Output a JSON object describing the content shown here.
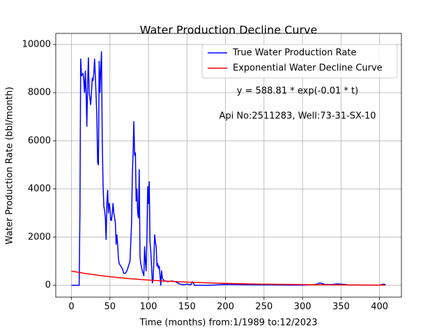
{
  "chart_data": {
    "type": "line",
    "title": "Water Production Decline Curve",
    "xlabel": "Time (months) from:1/1989 to:12/2023",
    "ylabel": "Water Production Rate (bbl/month)",
    "annotations": [
      "y = 588.81 * exp(-0.01 * t)",
      "Api No:2511283, Well:73-31-SX-10"
    ],
    "xlim": [
      -20.4,
      428.4
    ],
    "ylim": [
      -490,
      10460
    ],
    "xticks": [
      0,
      50,
      100,
      150,
      200,
      250,
      300,
      350,
      400
    ],
    "yticks": [
      0,
      2000,
      4000,
      6000,
      8000,
      10000
    ],
    "grid": true,
    "legend": "upper right",
    "series": [
      {
        "name": "True Water Production Rate",
        "color": "#0000ff",
        "x": [
          0,
          10,
          11,
          12,
          13,
          15,
          16,
          17,
          18,
          19,
          20,
          21,
          22,
          23,
          25,
          27,
          28,
          29,
          30,
          31,
          33,
          34,
          35,
          36,
          37,
          38,
          39,
          40,
          41,
          42,
          43,
          44,
          45,
          46,
          47,
          48,
          49,
          50,
          51,
          52,
          53,
          54,
          55,
          57,
          58,
          59,
          60,
          61,
          62,
          64,
          66,
          68,
          70,
          72,
          74,
          76,
          78,
          79,
          80,
          81,
          82,
          83,
          84,
          85,
          86,
          87,
          88,
          89,
          90,
          92,
          94,
          95,
          96,
          97,
          98,
          99,
          100,
          101,
          102,
          103,
          104,
          105,
          106,
          107,
          108,
          109,
          110,
          111,
          112,
          113,
          114,
          115,
          116,
          117,
          118,
          120,
          125,
          130,
          135,
          140,
          145,
          150,
          155,
          157,
          160,
          180,
          200,
          220,
          240,
          260,
          280,
          300,
          315,
          320,
          322,
          325,
          330,
          340,
          345,
          350,
          360,
          380,
          400,
          405,
          408
        ],
        "values": [
          0,
          0,
          3000,
          9400,
          8700,
          8800,
          8500,
          8000,
          8900,
          8000,
          6600,
          8400,
          9450,
          8000,
          7500,
          8600,
          8500,
          8800,
          9400,
          8700,
          7000,
          5100,
          5000,
          9300,
          8000,
          9000,
          9700,
          6000,
          4200,
          3300,
          3100,
          2800,
          1900,
          3400,
          3950,
          3000,
          3400,
          3200,
          2700,
          2700,
          3000,
          3400,
          3000,
          2600,
          1700,
          2100,
          1700,
          1100,
          900,
          800,
          700,
          500,
          500,
          600,
          800,
          1000,
          2500,
          4500,
          5500,
          6800,
          5400,
          5500,
          3500,
          4000,
          3000,
          2800,
          4800,
          1200,
          900,
          600,
          400,
          1600,
          1000,
          600,
          2000,
          4100,
          3400,
          4300,
          1800,
          1400,
          800,
          100,
          200,
          1000,
          2100,
          1800,
          1600,
          800,
          900,
          700,
          800,
          400,
          0,
          600,
          300,
          200,
          150,
          180,
          150,
          60,
          20,
          50,
          20,
          150,
          0,
          0,
          40,
          30,
          20,
          20,
          10,
          10,
          30,
          60,
          100,
          80,
          30,
          40,
          60,
          50,
          20,
          10,
          10,
          50,
          30
        ]
      },
      {
        "name": "Exponential Water Decline Curve",
        "color": "#ff0000",
        "x": [
          0,
          20,
          40,
          60,
          80,
          100,
          120,
          140,
          160,
          180,
          200,
          220,
          240,
          260,
          280,
          300,
          320,
          340,
          360,
          380,
          400,
          408
        ],
        "values": [
          588.8,
          482.1,
          394.7,
          323.1,
          264.6,
          216.6,
          177.3,
          145.2,
          118.9,
          97.3,
          79.7,
          65.2,
          53.4,
          43.7,
          35.8,
          29.3,
          24.0,
          19.6,
          16.1,
          13.2,
          10.8,
          10.0
        ]
      }
    ]
  }
}
